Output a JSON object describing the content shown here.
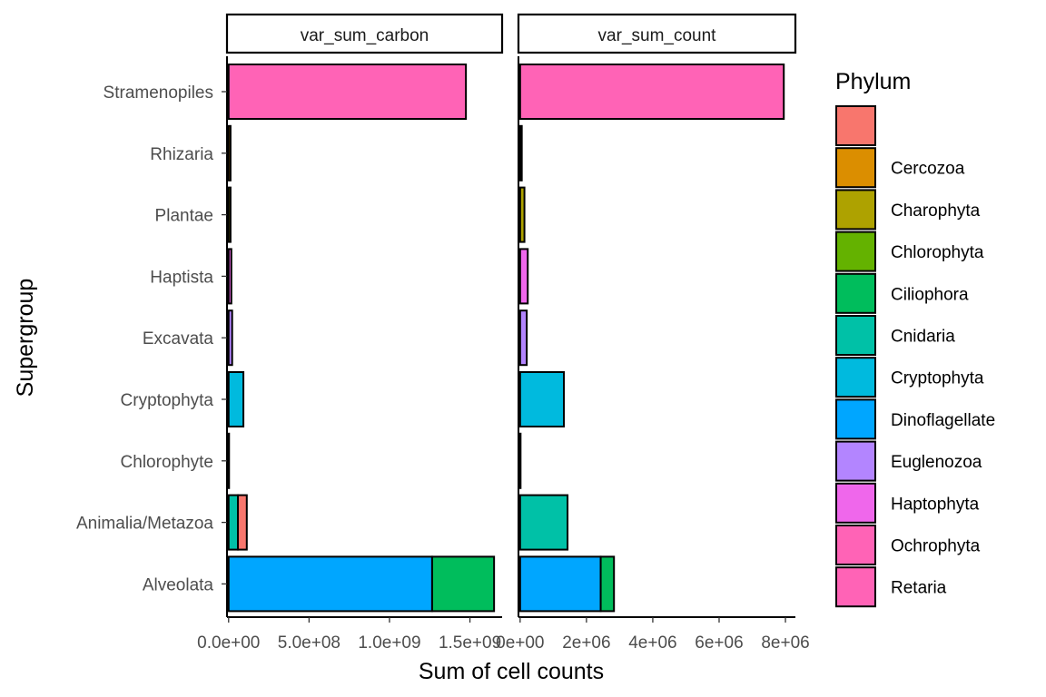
{
  "chart_data": {
    "type": "bar",
    "orientation": "horizontal",
    "stacked": true,
    "xlabel": "Sum of cell counts",
    "ylabel": "Supergroup",
    "categories": [
      "Alveolata",
      "Animalia/Metazoa",
      "Chlorophyte",
      "Cryptophyta",
      "Excavata",
      "Haptista",
      "Plantae",
      "Rhizaria",
      "Stramenopiles"
    ],
    "legend": {
      "title": "Phylum",
      "position": "right",
      "entries": [
        {
          "label": "",
          "color": "#F8766D"
        },
        {
          "label": "Cercozoa",
          "color": "#DB8E00"
        },
        {
          "label": "Charophyta",
          "color": "#AEA200"
        },
        {
          "label": "Chlorophyta",
          "color": "#64B200"
        },
        {
          "label": "Ciliophora",
          "color": "#00BD5C"
        },
        {
          "label": "Cnidaria",
          "color": "#00C1A7"
        },
        {
          "label": "Cryptophyta",
          "color": "#00BADE"
        },
        {
          "label": "Dinoflagellate",
          "color": "#00A6FF"
        },
        {
          "label": "Euglenozoa",
          "color": "#B385FF"
        },
        {
          "label": "Haptophyta",
          "color": "#EF67EB"
        },
        {
          "label": "Ochrophyta",
          "color": "#FF63B6"
        },
        {
          "label": "Retaria",
          "color": "#FF63B6"
        }
      ]
    },
    "grid": false,
    "facets": [
      {
        "strip": "var_sum_carbon",
        "xlim": [
          -10000000,
          1700000000
        ],
        "xticks": [
          0,
          500000000,
          1000000000,
          1500000000
        ],
        "xtick_labels": [
          "0.0e+00",
          "5.0e+08",
          "1.0e+09",
          "1.5e+09"
        ],
        "stacks": [
          {
            "category": "Alveolata",
            "segments": [
              {
                "phylum": "Dinoflagellate",
                "value": 1265000000
              },
              {
                "phylum": "Ciliophora",
                "value": 385000000
              }
            ]
          },
          {
            "category": "Animalia/Metazoa",
            "segments": [
              {
                "phylum": "Cnidaria",
                "value": 58000000
              },
              {
                "phylum": "",
                "value": 55000000
              }
            ]
          },
          {
            "category": "Chlorophyte",
            "segments": [
              {
                "phylum": "Chlorophyta",
                "value": 800000
              }
            ]
          },
          {
            "category": "Cryptophyta",
            "segments": [
              {
                "phylum": "Cryptophyta",
                "value": 92000000
              }
            ]
          },
          {
            "category": "Excavata",
            "segments": [
              {
                "phylum": "Euglenozoa",
                "value": 22000000
              }
            ]
          },
          {
            "category": "Haptista",
            "segments": [
              {
                "phylum": "Haptophyta",
                "value": 17000000
              }
            ]
          },
          {
            "category": "Plantae",
            "segments": [
              {
                "phylum": "Charophyta",
                "value": 12000000
              }
            ]
          },
          {
            "category": "Rhizaria",
            "segments": [
              {
                "phylum": "Cercozoa",
                "value": 12000000
              }
            ]
          },
          {
            "category": "Stramenopiles",
            "segments": [
              {
                "phylum": "Ochrophyta",
                "value": 1475000000
              }
            ]
          }
        ]
      },
      {
        "strip": "var_sum_count",
        "xlim": [
          -50000,
          8300000
        ],
        "xticks": [
          0,
          2000000,
          4000000,
          6000000,
          8000000
        ],
        "xtick_labels": [
          "0e+00",
          "2e+06",
          "4e+06",
          "6e+06",
          "8e+06"
        ],
        "stacks": [
          {
            "category": "Alveolata",
            "segments": [
              {
                "phylum": "Dinoflagellate",
                "value": 2430000
              },
              {
                "phylum": "Ciliophora",
                "value": 400000
              }
            ]
          },
          {
            "category": "Animalia/Metazoa",
            "segments": [
              {
                "phylum": "Cnidaria",
                "value": 1430000
              }
            ]
          },
          {
            "category": "Chlorophyte",
            "segments": [
              {
                "phylum": "Chlorophyta",
                "value": 10000
              }
            ]
          },
          {
            "category": "Cryptophyta",
            "segments": [
              {
                "phylum": "Cryptophyta",
                "value": 1320000
              }
            ]
          },
          {
            "category": "Excavata",
            "segments": [
              {
                "phylum": "Euglenozoa",
                "value": 200000
              }
            ]
          },
          {
            "category": "Haptista",
            "segments": [
              {
                "phylum": "Haptophyta",
                "value": 230000
              }
            ]
          },
          {
            "category": "Plantae",
            "segments": [
              {
                "phylum": "Charophyta",
                "value": 130000
              }
            ]
          },
          {
            "category": "Rhizaria",
            "segments": [
              {
                "phylum": "Cercozoa",
                "value": 50000
              }
            ]
          },
          {
            "category": "Stramenopiles",
            "segments": [
              {
                "phylum": "Ochrophyta",
                "value": 7950000
              }
            ]
          }
        ]
      }
    ]
  }
}
